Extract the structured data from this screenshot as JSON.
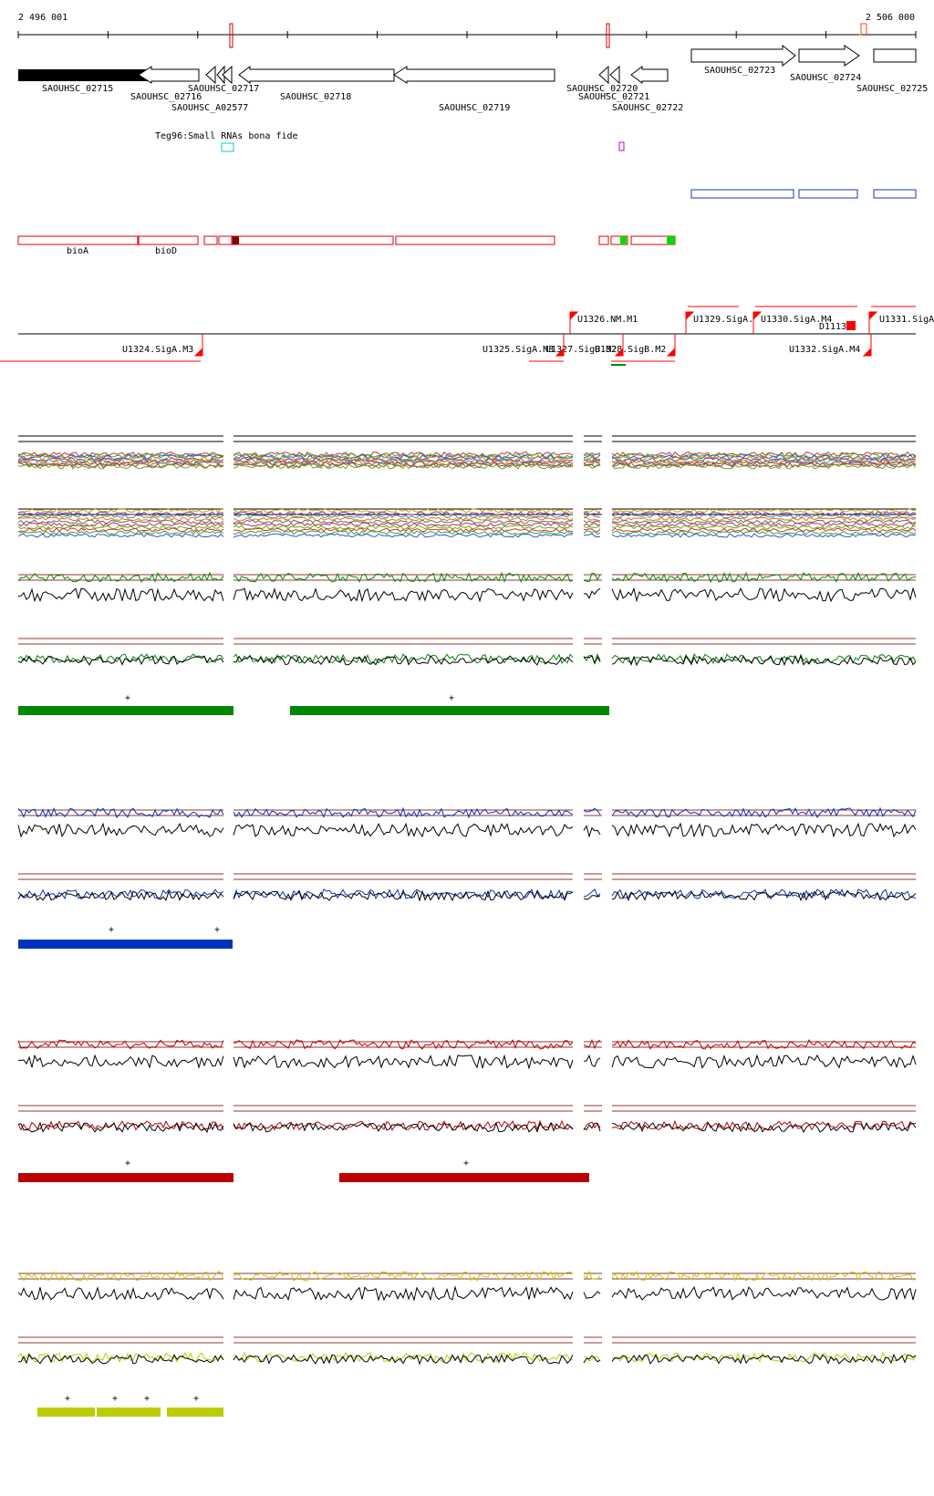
{
  "ruler": {
    "start_label": "2 496 001",
    "end_label": "2 506 000"
  },
  "genes": [
    {
      "label": "SAOUHSC_02715",
      "strand": "-",
      "selected": true
    },
    {
      "label": "SAOUHSC_02716",
      "strand": "-"
    },
    {
      "label": "SAOUHSC_A02577",
      "strand": "-"
    },
    {
      "label": "SAOUHSC_02717",
      "strand": "-"
    },
    {
      "label": "SAOUHSC_02718",
      "strand": "-"
    },
    {
      "label": "SAOUHSC_02719",
      "strand": "-"
    },
    {
      "label": "SAOUHSC_02720",
      "strand": "-"
    },
    {
      "label": "SAOUHSC_02721",
      "strand": "-"
    },
    {
      "label": "SAOUHSC_02722",
      "strand": "-"
    },
    {
      "label": "SAOUHSC_02723",
      "strand": "+"
    },
    {
      "label": "SAOUHSC_02724",
      "strand": "+"
    },
    {
      "label": "SAOUHSC_02725",
      "strand": "+"
    }
  ],
  "small_rna": {
    "label": "Teg96:Small RNAs bona fide"
  },
  "operons": [
    {
      "label": "bioA"
    },
    {
      "label": "bioD"
    }
  ],
  "promoters": [
    {
      "label": "U1324.SigA.M3"
    },
    {
      "label": "U1325.SigA.M3"
    },
    {
      "label": "U1326.NM.M1"
    },
    {
      "label": "U1327.SigB.M2"
    },
    {
      "label": "U1328.SigB.M2"
    },
    {
      "label": "U1329.SigA."
    },
    {
      "label": "U1330.SigA.M4"
    },
    {
      "label": "U1331.SigA"
    },
    {
      "label": "U1332.SigA.M4"
    },
    {
      "label": "D1113"
    }
  ],
  "panels": [
    {
      "name": "overview",
      "color": "#000000"
    },
    {
      "name": "green-condition",
      "color": "#008800",
      "marker": "+"
    },
    {
      "name": "blue-condition",
      "color": "#0033bb",
      "marker": "+"
    },
    {
      "name": "red-condition",
      "color": "#bb0000",
      "marker": "+"
    },
    {
      "name": "yellow-condition",
      "color": "#bbcc00",
      "marker": "+"
    }
  ],
  "colors": {
    "gene_outline": "#000000",
    "selected_gene": "#000000",
    "operon": "#dd0000",
    "promoter": "#ff0000",
    "threshold": "#993333",
    "small_rna_cyan": "#00cccc",
    "small_rna_magenta": "#cc00cc",
    "blue_feature": "#2233bb",
    "green_mark": "#00dd00"
  }
}
